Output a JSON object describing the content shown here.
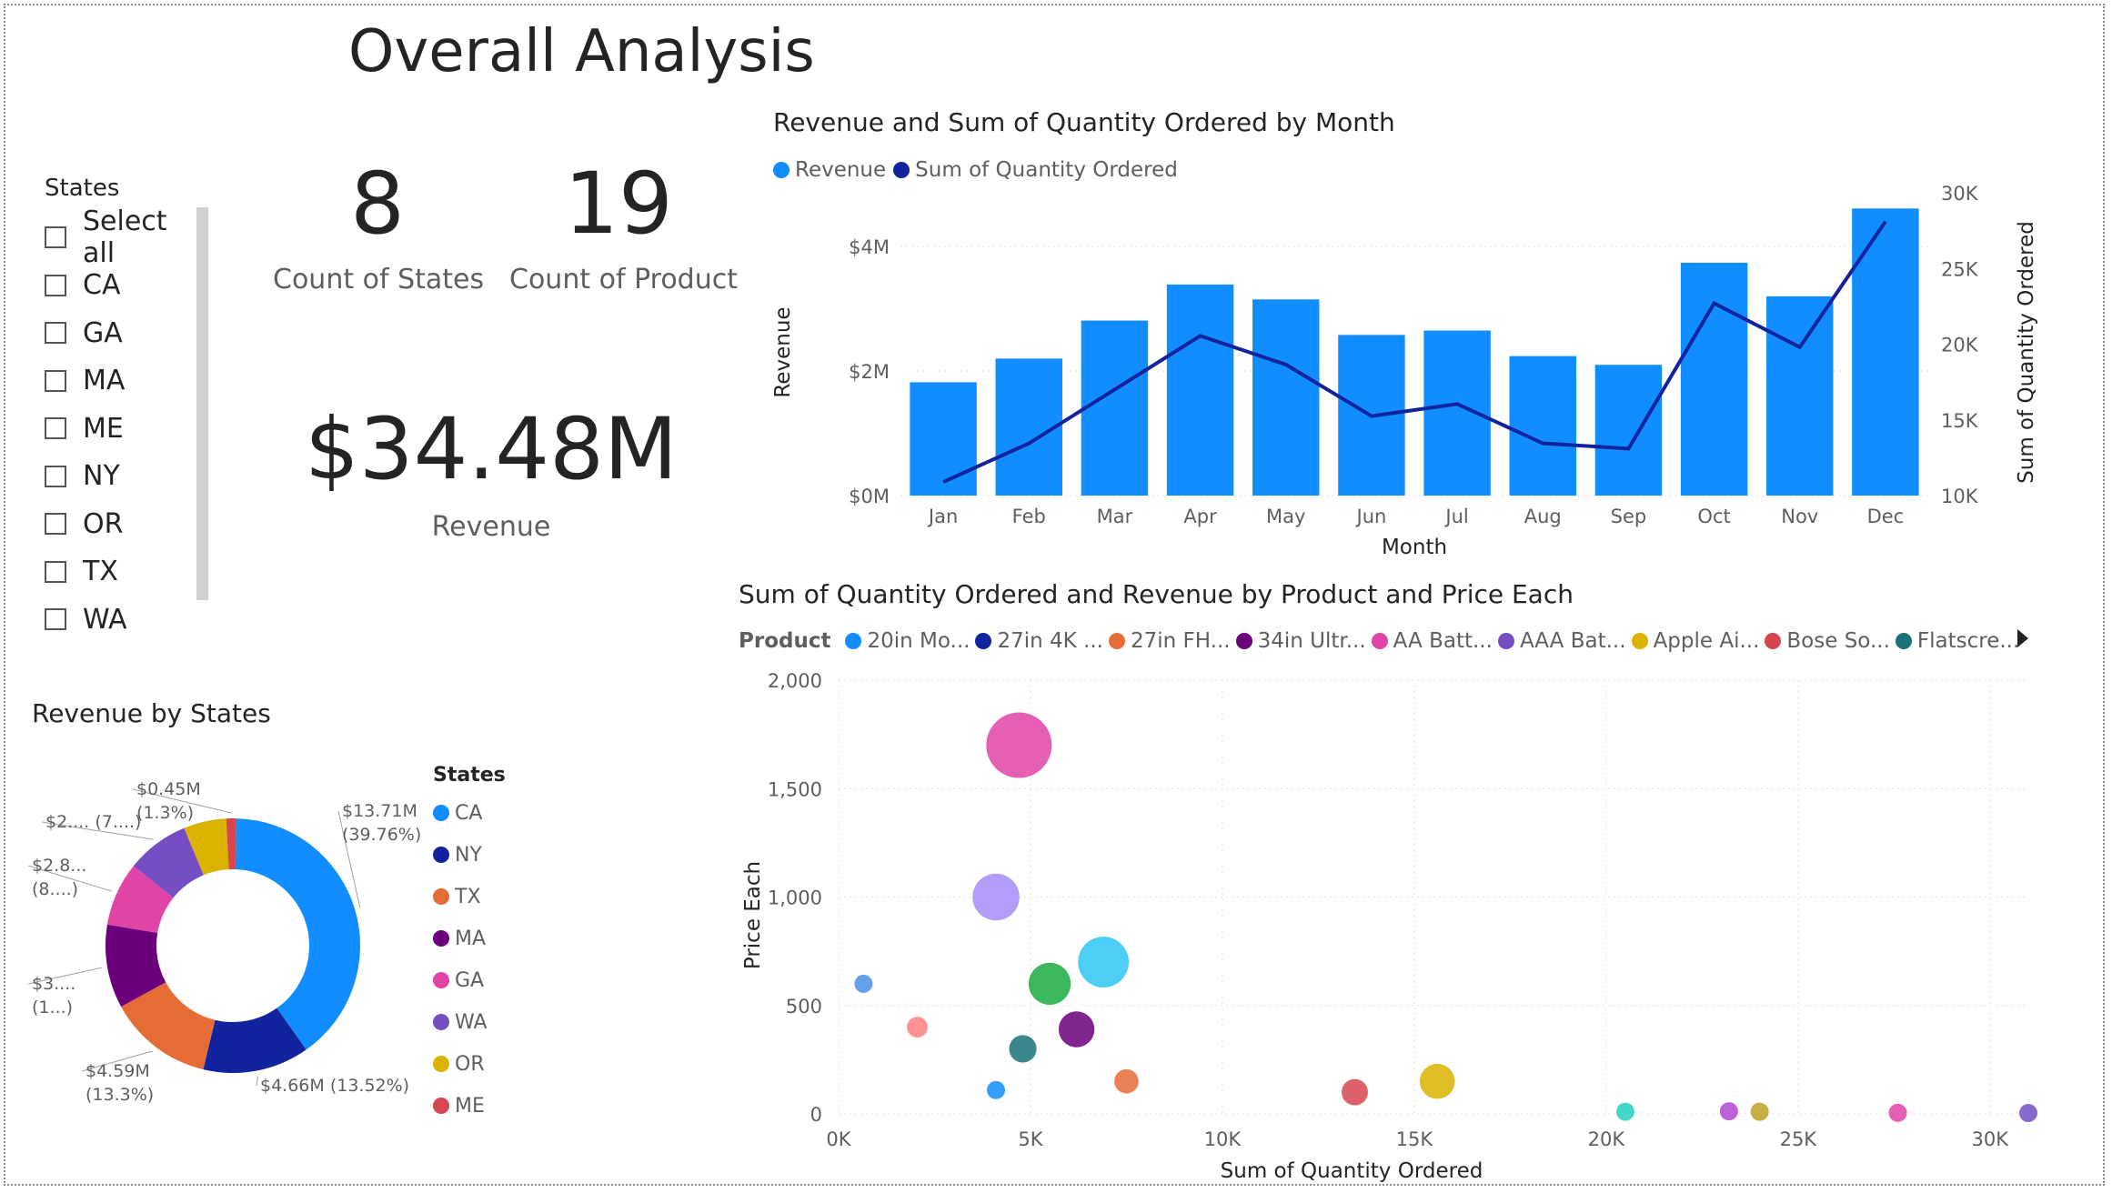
{
  "page": {
    "title": "Overall Analysis"
  },
  "slicer": {
    "title": "States",
    "items": [
      "Select all",
      "CA",
      "GA",
      "MA",
      "ME",
      "NY",
      "OR",
      "TX",
      "WA"
    ]
  },
  "kpis": {
    "states_count": "8",
    "states_label": "Count of States",
    "product_count": "19",
    "product_label": "Count of Product",
    "revenue": "$34.48M",
    "revenue_label": "Revenue"
  },
  "colors": {
    "revenue_bar": "#118DFF",
    "quantity_line": "#12239E"
  },
  "chart_data": [
    {
      "type": "bar",
      "title": "Revenue and Sum of Quantity Ordered by Month",
      "xlabel": "Month",
      "ylabel": "Revenue",
      "y2label": "Sum of Quantity Ordered",
      "categories": [
        "Jan",
        "Feb",
        "Mar",
        "Apr",
        "May",
        "Jun",
        "Jul",
        "Aug",
        "Sep",
        "Oct",
        "Nov",
        "Dec"
      ],
      "series": [
        {
          "name": "Revenue",
          "type": "bar",
          "axis": "left",
          "values": [
            1.82,
            2.2,
            2.81,
            3.39,
            3.15,
            2.58,
            2.65,
            2.24,
            2.1,
            3.74,
            3.2,
            4.61
          ]
        },
        {
          "name": "Sum of Quantity Ordered",
          "type": "line",
          "axis": "right",
          "values": [
            10900,
            13450,
            17000,
            20550,
            18650,
            15250,
            16050,
            13450,
            13100,
            22700,
            19800,
            28100
          ]
        }
      ],
      "ylim": [
        0,
        4.6
      ],
      "y2lim": [
        10000,
        30000
      ],
      "yticks": [
        "$0M",
        "$2M",
        "$4M"
      ],
      "y2ticks": [
        "10K",
        "15K",
        "20K",
        "25K",
        "30K"
      ],
      "legend_position": "top-left"
    },
    {
      "type": "scatter",
      "title": "Sum of Quantity Ordered and Revenue by Product and Price Each",
      "xlabel": "Sum of Quantity Ordered",
      "ylabel": "Price Each",
      "legend_title": "Product",
      "legend_position": "top",
      "legend": [
        {
          "label": "20in Mo...",
          "color": "#118DFF"
        },
        {
          "label": "27in 4K ...",
          "color": "#12239E"
        },
        {
          "label": "27in FH...",
          "color": "#E66C37"
        },
        {
          "label": "34in Ultr...",
          "color": "#6B007B"
        },
        {
          "label": "AA Batt...",
          "color": "#E044A7"
        },
        {
          "label": "AAA Bat...",
          "color": "#744EC2"
        },
        {
          "label": "Apple Ai...",
          "color": "#D9B300"
        },
        {
          "label": "Bose So...",
          "color": "#D64550"
        },
        {
          "label": "Flatscre...",
          "color": "#197278"
        }
      ],
      "xlim": [
        0,
        31000
      ],
      "ylim": [
        0,
        2000
      ],
      "xticks": [
        "0K",
        "5K",
        "10K",
        "15K",
        "20K",
        "25K",
        "30K"
      ],
      "yticks": [
        "0",
        "500",
        "1,000",
        "1,500",
        "2,000"
      ],
      "points": [
        {
          "x": 4700,
          "y": 1700,
          "revenue": 8.0,
          "color": "#E044A7"
        },
        {
          "x": 4100,
          "y": 1000,
          "revenue": 4.1,
          "color": "#A78BFA"
        },
        {
          "x": 6900,
          "y": 700,
          "revenue": 4.8,
          "color": "#2EC5F2"
        },
        {
          "x": 5500,
          "y": 600,
          "revenue": 3.3,
          "color": "#1AAB40"
        },
        {
          "x": 650,
          "y": 600,
          "revenue": 0.4,
          "color": "#4A8FE6"
        },
        {
          "x": 2050,
          "y": 400,
          "revenue": 0.8,
          "color": "#FF8080"
        },
        {
          "x": 6200,
          "y": 390,
          "revenue": 2.4,
          "color": "#6B007B"
        },
        {
          "x": 4800,
          "y": 300,
          "revenue": 1.4,
          "color": "#197278"
        },
        {
          "x": 7500,
          "y": 150,
          "revenue": 1.1,
          "color": "#E66C37"
        },
        {
          "x": 4100,
          "y": 110,
          "revenue": 0.45,
          "color": "#118DFF"
        },
        {
          "x": 15600,
          "y": 150,
          "revenue": 2.3,
          "color": "#D9B300"
        },
        {
          "x": 13450,
          "y": 100,
          "revenue": 1.3,
          "color": "#D64550"
        },
        {
          "x": 20500,
          "y": 10,
          "revenue": 0.2,
          "color": "#20D0C0"
        },
        {
          "x": 23200,
          "y": 12,
          "revenue": 0.28,
          "color": "#B045D0"
        },
        {
          "x": 24000,
          "y": 10,
          "revenue": 0.22,
          "color": "#C0A020"
        },
        {
          "x": 27600,
          "y": 5,
          "revenue": 0.13,
          "color": "#E044A7"
        },
        {
          "x": 31000,
          "y": 4,
          "revenue": 0.1,
          "color": "#744EC2"
        }
      ]
    },
    {
      "type": "pie",
      "title": "Revenue by States",
      "legend_title": "States",
      "legend_position": "right",
      "slices": [
        {
          "label": "CA",
          "value": 13.71,
          "percent": 39.76,
          "color": "#118DFF",
          "data_label": "$13.71M",
          "data_label_2": "(39.76%)"
        },
        {
          "label": "NY",
          "value": 4.66,
          "percent": 13.52,
          "color": "#12239E",
          "data_label": "$4.66M (13.52%)",
          "data_label_2": ""
        },
        {
          "label": "TX",
          "value": 4.59,
          "percent": 13.3,
          "color": "#E66C37",
          "data_label": "$4.59M",
          "data_label_2": "(13.3%)"
        },
        {
          "label": "MA",
          "value": 3.66,
          "percent": 10.6,
          "color": "#6B007B",
          "data_label": "$3....",
          "data_label_2": "(1...)"
        },
        {
          "label": "GA",
          "value": 2.8,
          "percent": 8.1,
          "color": "#E044A7",
          "data_label": "$2.8...",
          "data_label_2": "(8....)"
        },
        {
          "label": "WA",
          "value": 2.75,
          "percent": 7.98,
          "color": "#744EC2",
          "data_label": "$2.... (7....)",
          "data_label_2": ""
        },
        {
          "label": "OR",
          "value": 1.87,
          "percent": 5.44,
          "color": "#D9B300",
          "data_label": "",
          "data_label_2": ""
        },
        {
          "label": "ME",
          "value": 0.45,
          "percent": 1.3,
          "color": "#D64550",
          "data_label": "$0.45M",
          "data_label_2": "(1.3%)"
        }
      ]
    }
  ]
}
